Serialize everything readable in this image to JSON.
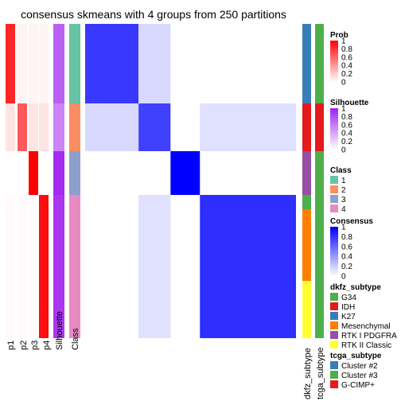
{
  "chart_data": {
    "type": "heatmap",
    "title": "consensus skmeans with 4 groups from 250 partitions",
    "prob_columns": [
      "p1",
      "p2",
      "p3",
      "p4"
    ],
    "silhouette_label": "Silhouette",
    "class_label": "Class",
    "right_annotations": [
      "dkfz_subtype",
      "tcga_subtype"
    ],
    "groups": [
      {
        "class": "1",
        "count": 40,
        "p_main": 0.85,
        "silhouette": 0.72
      },
      {
        "class": "2",
        "count": 24,
        "p_main": 0.65,
        "silhouette": 0.55
      },
      {
        "class": "3",
        "count": 22,
        "p_main": 1.0,
        "silhouette": 0.95
      },
      {
        "class": "4",
        "count": 72,
        "p_main": 0.95,
        "silhouette": 0.9
      }
    ],
    "consensus_blocks": [
      {
        "rows": "class 1",
        "cols": "class 1",
        "value": 0.78
      },
      {
        "rows": "class 2",
        "cols": "class 2",
        "value": 0.75
      },
      {
        "rows": "class 3",
        "cols": "class 3",
        "value": 1.0
      },
      {
        "rows": "class 4",
        "cols": "class 4",
        "value": 0.82
      },
      {
        "rows": "class 1",
        "cols": "class 2",
        "value": 0.15
      },
      {
        "rows": "class 2",
        "cols": "class 4",
        "value": 0.12
      }
    ],
    "legends": {
      "prob": {
        "title": "Prob",
        "ticks": [
          "1",
          "0.8",
          "0.6",
          "0.4",
          "0.2",
          "0"
        ],
        "color_low": "#ffffff",
        "color_high": "#ff0000"
      },
      "silhouette": {
        "title": "Silhouette",
        "ticks": [
          "1",
          "0.8",
          "0.6",
          "0.4",
          "0.2",
          "0"
        ],
        "color_low": "#ffffff",
        "color_high": "#a020f0"
      },
      "class": {
        "title": "Class",
        "items": [
          {
            "label": "1",
            "color": "#66c2a5"
          },
          {
            "label": "2",
            "color": "#fc8d62"
          },
          {
            "label": "3",
            "color": "#8da0cb"
          },
          {
            "label": "4",
            "color": "#e78ac3"
          }
        ]
      },
      "consensus": {
        "title": "Consensus",
        "ticks": [
          "1",
          "0.8",
          "0.6",
          "0.4",
          "0.2",
          "0"
        ],
        "color_low": "#ffffff",
        "color_high": "#0000ff"
      },
      "dkfz_subtype": {
        "title": "dkfz_subtype",
        "items": [
          {
            "label": "G34",
            "color": "#4daf4a"
          },
          {
            "label": "IDH",
            "color": "#e41a1c"
          },
          {
            "label": "K27",
            "color": "#377eb8"
          },
          {
            "label": "Mesenchymal",
            "color": "#ff7f00"
          },
          {
            "label": "RTK I PDGFRA",
            "color": "#984ea3"
          },
          {
            "label": "RTK II Classic",
            "color": "#ffff33"
          }
        ]
      },
      "tcga_subtype": {
        "title": "tcga_subtype",
        "items": [
          {
            "label": "Cluster #2",
            "color": "#377eb8"
          },
          {
            "label": "Cluster #3",
            "color": "#4daf4a"
          },
          {
            "label": "G-CIMP+",
            "color": "#e41a1c"
          }
        ]
      }
    }
  }
}
